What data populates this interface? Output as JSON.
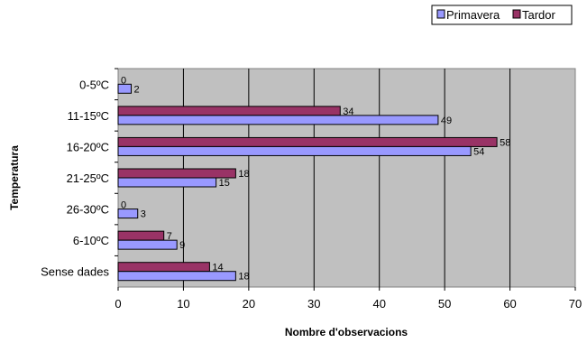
{
  "chart_data": {
    "type": "bar",
    "orientation": "horizontal",
    "categories": [
      "0-5ºC",
      "11-15ºC",
      "16-20ºC",
      "21-25ºC",
      "26-30ºC",
      "6-10ºC",
      "Sense dades"
    ],
    "series": [
      {
        "name": "Tardor",
        "values": [
          0,
          34,
          58,
          18,
          0,
          7,
          14
        ],
        "color": "#993366"
      },
      {
        "name": "Primavera",
        "values": [
          2,
          49,
          54,
          15,
          3,
          9,
          18
        ],
        "color": "#9999ff"
      }
    ],
    "xlabel": "Nombre d'observacions",
    "ylabel": "Temperatura",
    "xlim": [
      0,
      70
    ],
    "xticks": [
      "0",
      "10",
      "20",
      "30",
      "40",
      "50",
      "60",
      "70"
    ],
    "grid": true,
    "plot_background": "#c0c0c0",
    "legend": {
      "position": "top-right",
      "entries": [
        "Primavera",
        "Tardor"
      ]
    },
    "data_labels": true
  }
}
